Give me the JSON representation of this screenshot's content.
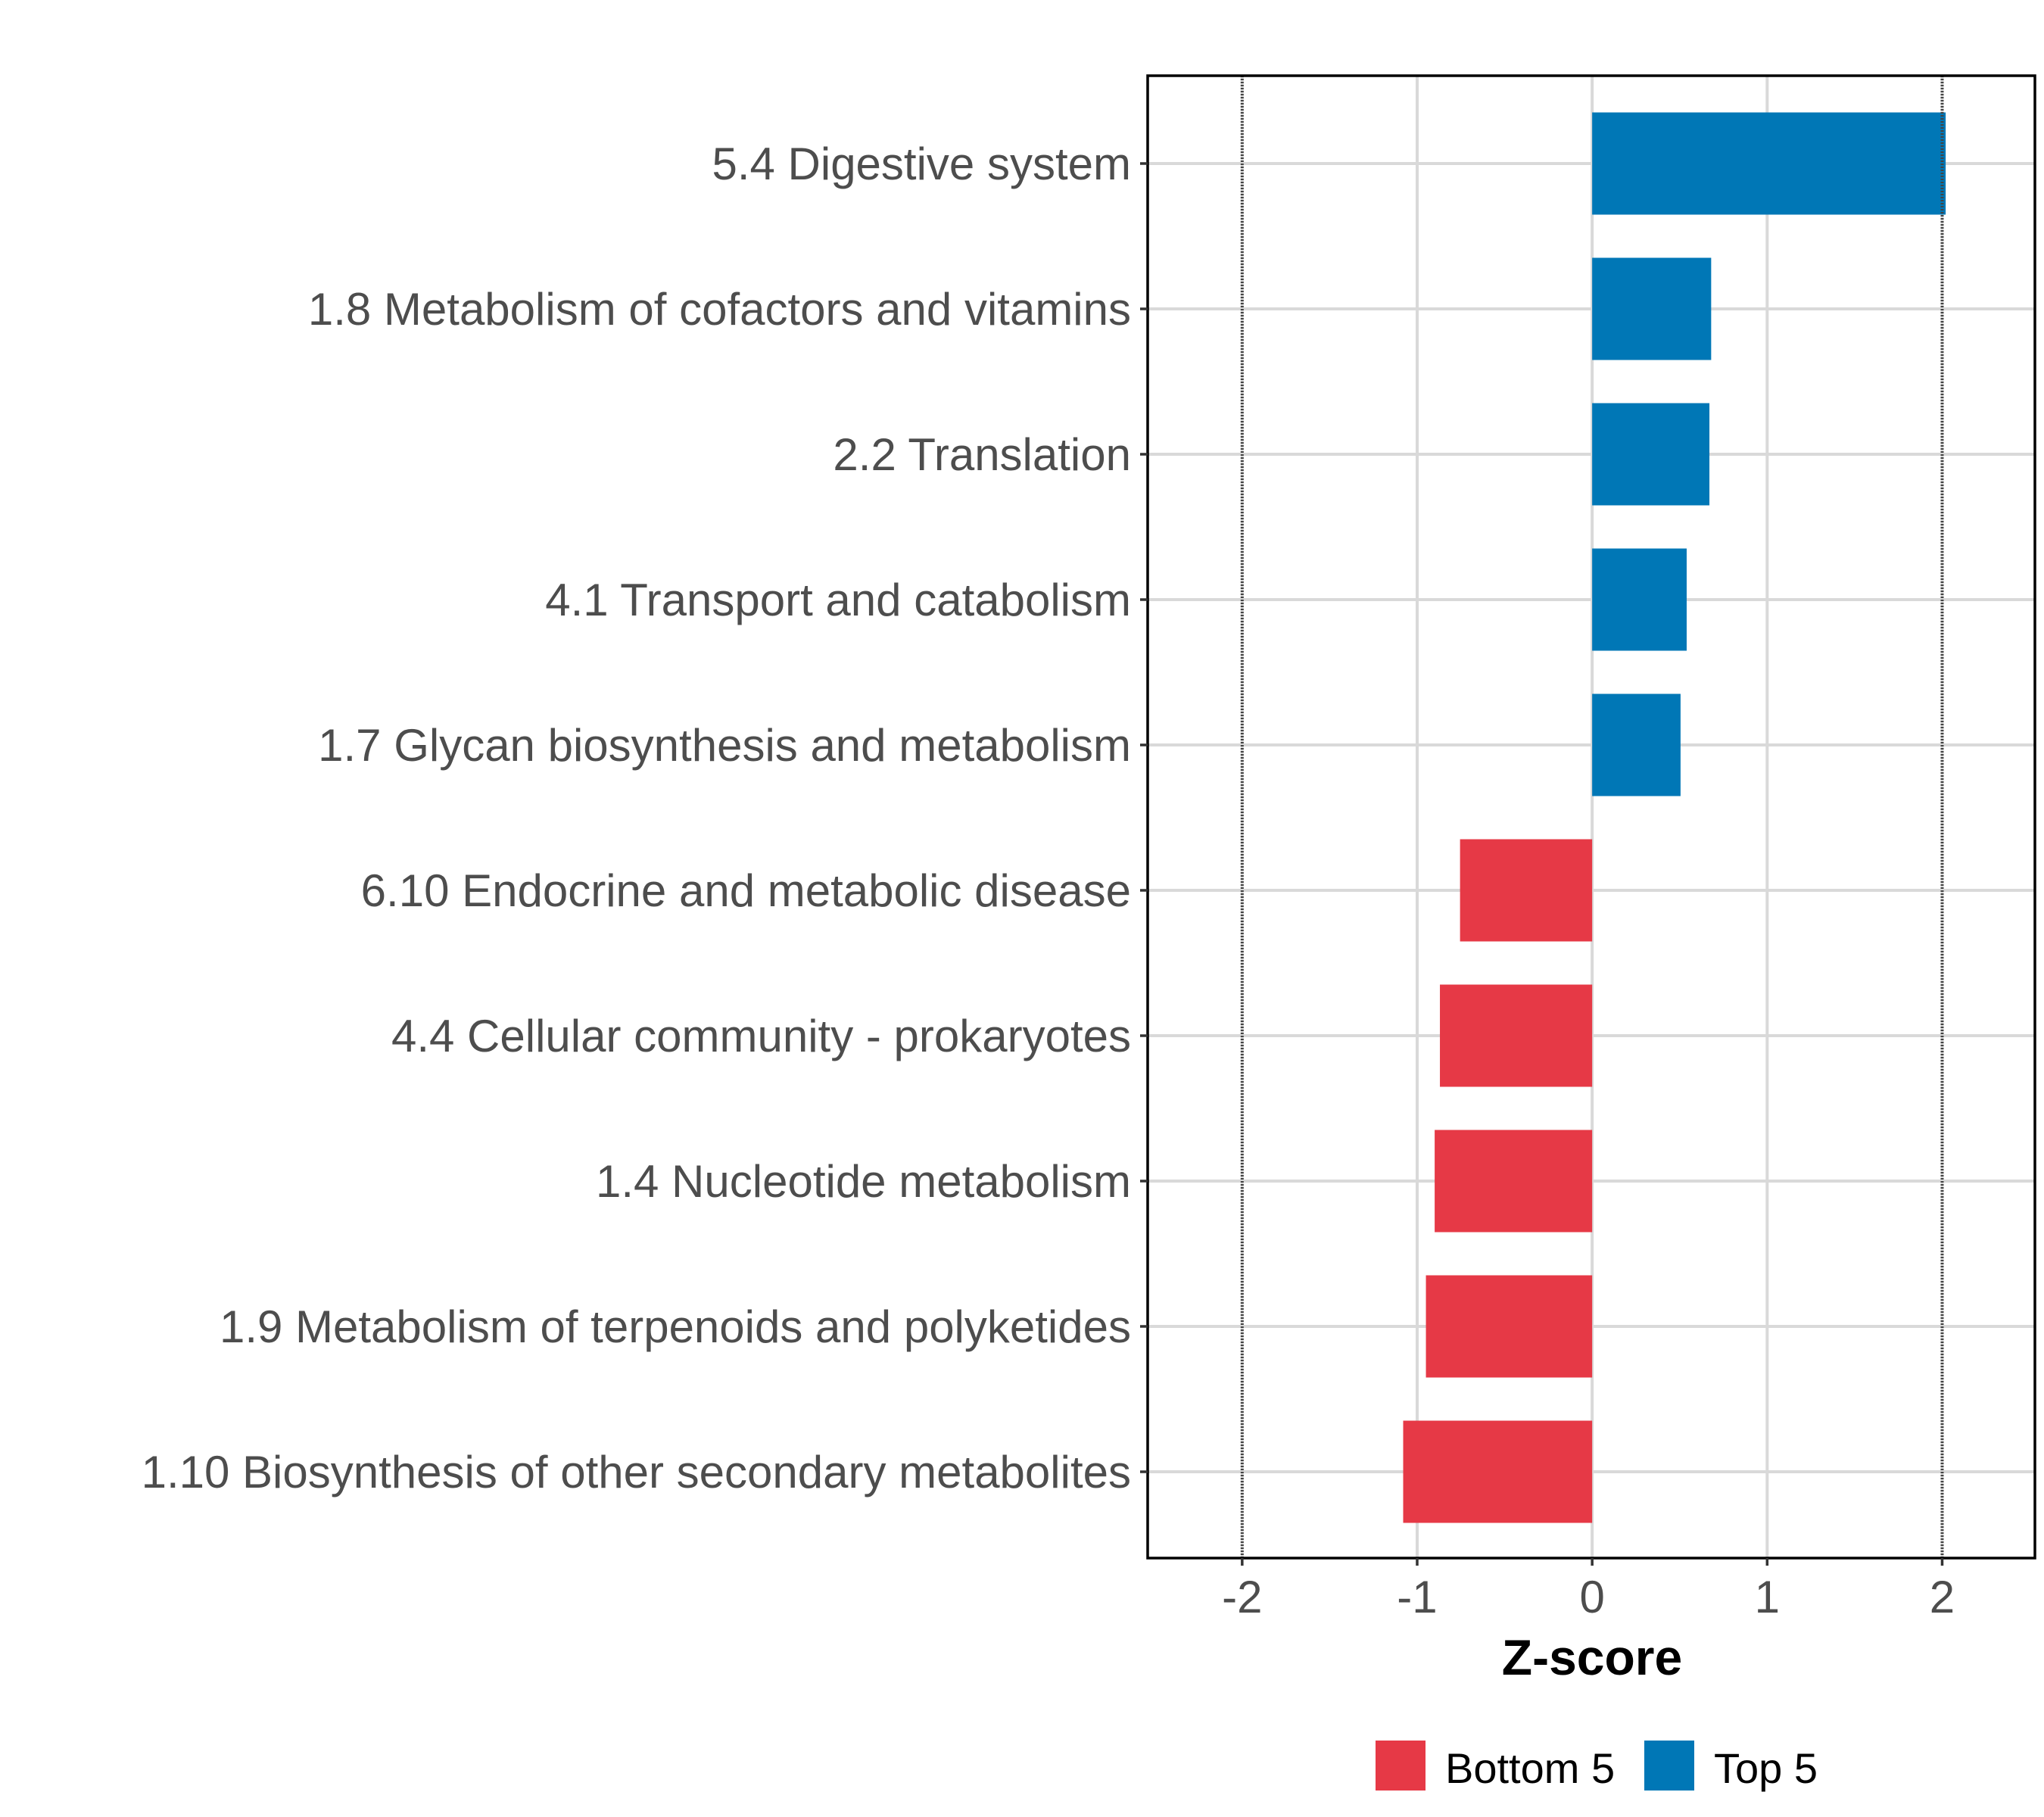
{
  "chart_data": {
    "type": "bar",
    "orientation": "horizontal",
    "title": "",
    "xlabel": "Z-score",
    "ylabel": "",
    "xlim": [
      -2.54,
      2.53
    ],
    "xticks": [
      -2,
      -1,
      0,
      1,
      2
    ],
    "xtick_labels": [
      "-2",
      "-1",
      "0",
      "1",
      "2"
    ],
    "reference_lines": [
      -2,
      2
    ],
    "grid": true,
    "categories": [
      "5.4 Digestive system",
      "1.8 Metabolism of cofactors and vitamins",
      "2.2 Translation",
      "4.1 Transport and catabolism",
      "1.7 Glycan biosynthesis and metabolism",
      "6.10 Endocrine and metabolic disease",
      "4.4 Cellular community - prokaryotes",
      "1.4 Nucleotide metabolism",
      "1.9 Metabolism of terpenoids and polyketides",
      "1.10 Biosynthesis of other secondary metabolites"
    ],
    "values": [
      2.02,
      0.68,
      0.67,
      0.54,
      0.505,
      -0.755,
      -0.87,
      -0.9,
      -0.95,
      -1.08
    ],
    "groups": [
      "Top 5",
      "Top 5",
      "Top 5",
      "Top 5",
      "Top 5",
      "Bottom 5",
      "Bottom 5",
      "Bottom 5",
      "Bottom 5",
      "Bottom 5"
    ],
    "legend": {
      "position": "bottom",
      "entries": [
        {
          "label": "Bottom 5",
          "color": "#E63946"
        },
        {
          "label": "Top 5",
          "color": "#0077B6"
        }
      ]
    }
  }
}
